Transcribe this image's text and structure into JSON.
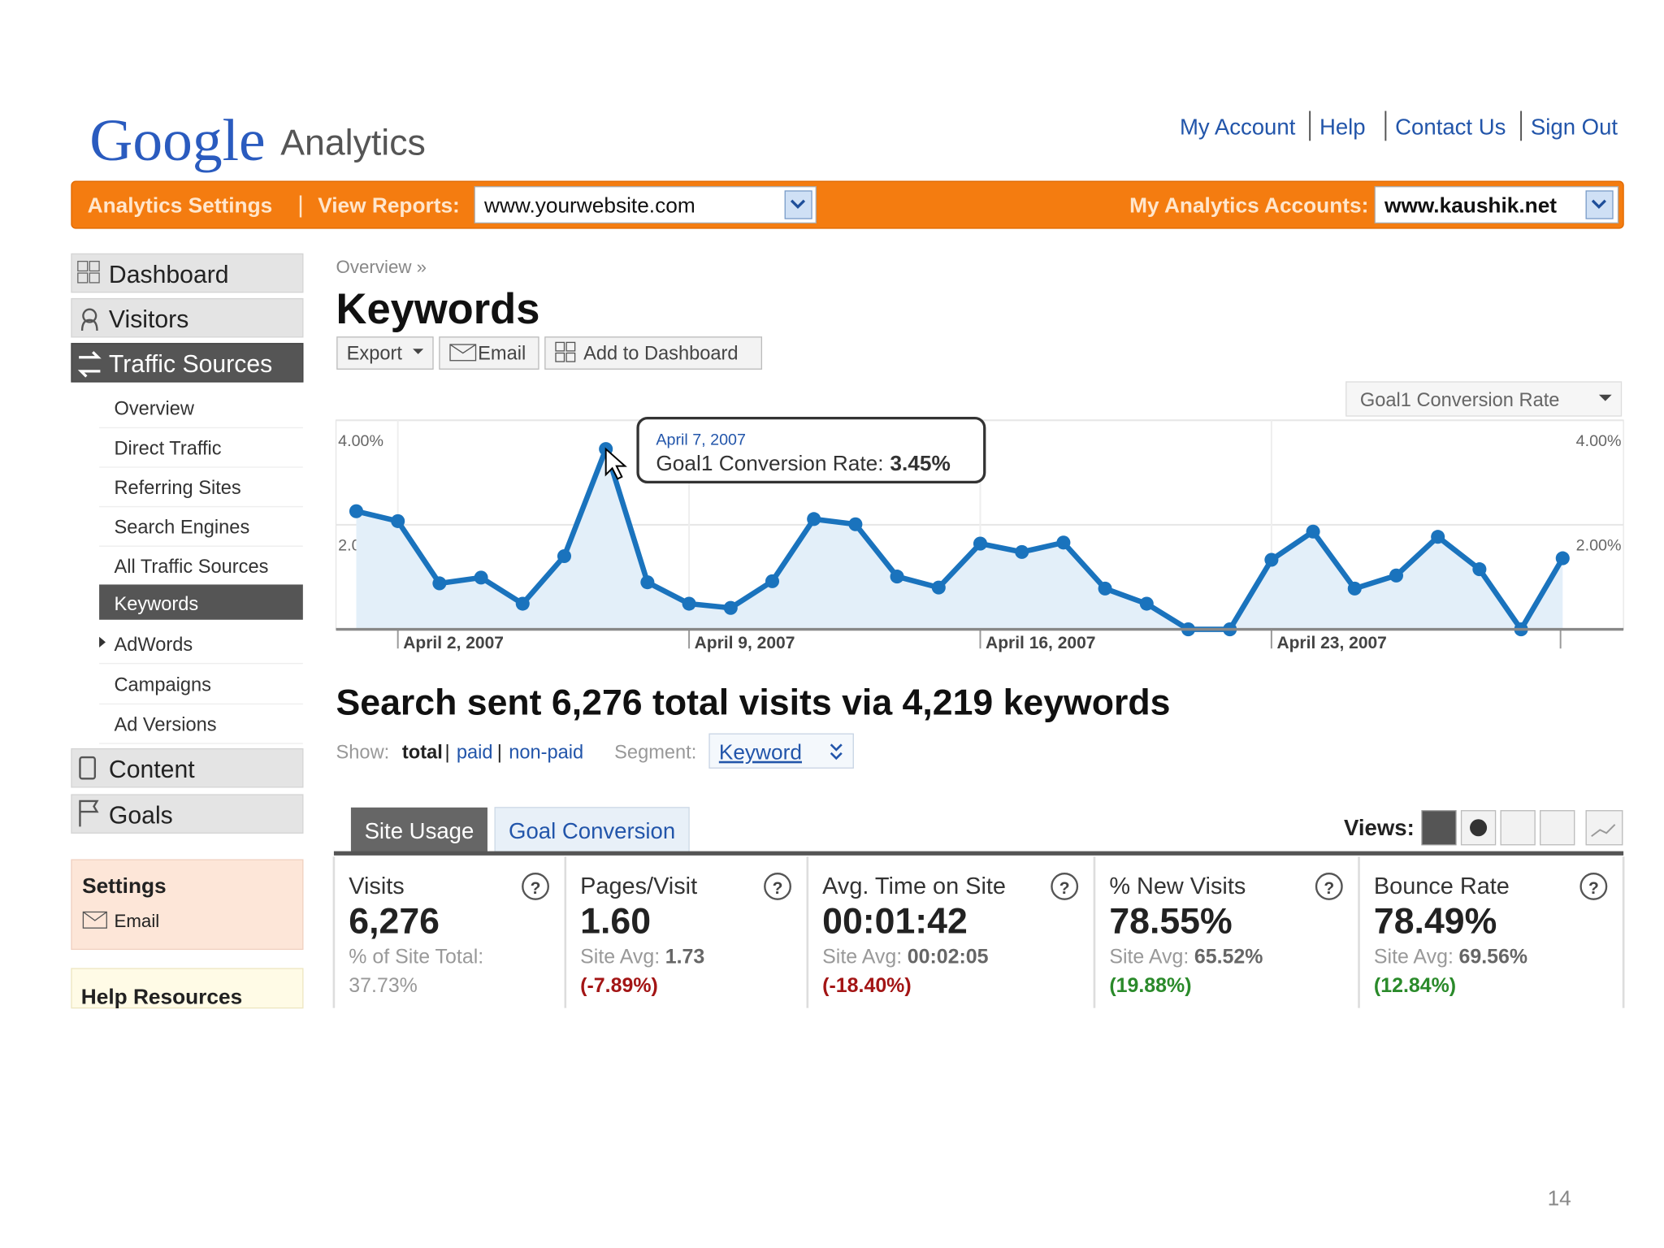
{
  "header": {
    "logo": "Google",
    "product": "Analytics",
    "links": [
      "My Account",
      "Help",
      "Contact Us",
      "Sign Out"
    ]
  },
  "toolbar": {
    "settings": "Analytics Settings",
    "view_reports": "View Reports:",
    "site": "www.yourwebsite.com",
    "accounts_label": "My Analytics Accounts:",
    "account": "www.kaushik.net"
  },
  "sidebar": {
    "top": [
      "Dashboard",
      "Visitors",
      "Traffic Sources"
    ],
    "sub": [
      "Overview",
      "Direct Traffic",
      "Referring Sites",
      "Search Engines",
      "All Traffic Sources",
      "Keywords",
      "AdWords",
      "Campaigns",
      "Ad Versions"
    ],
    "bottom": [
      "Content",
      "Goals"
    ],
    "settings": "Settings",
    "email": "Email",
    "help": "Help Resources"
  },
  "page": {
    "breadcrumb": "Overview »",
    "title": "Keywords",
    "buttons": [
      "Export",
      "Email",
      "Add to Dashboard"
    ],
    "metric_selector": "Goal1 Conversion Rate"
  },
  "chart": {
    "type": "line",
    "color": "#1a73bd",
    "categories": [
      null,
      "April 2, 2007",
      null,
      null,
      null,
      null,
      null,
      null,
      "April 9, 2007",
      null,
      null,
      null,
      null,
      null,
      null,
      "April 16, 2007",
      null,
      null,
      null,
      null,
      null,
      null,
      "April 23, 2007",
      null,
      null,
      null,
      null,
      null,
      null,
      null
    ],
    "values": [
      2.26,
      2.07,
      0.88,
      0.99,
      0.49,
      1.4,
      3.45,
      0.9,
      0.49,
      0.41,
      0.92,
      2.11,
      2.01,
      1.01,
      0.8,
      1.64,
      1.48,
      1.66,
      0.78,
      0.49,
      0,
      0,
      1.33,
      1.87,
      0.78,
      1.03,
      1.77,
      1.15,
      0,
      1.36
    ],
    "ylim": [
      0,
      4
    ],
    "yticks": [
      {
        "value": 2,
        "label": "2.00%"
      },
      {
        "value": 4,
        "label": "4.00%"
      }
    ],
    "grid": true,
    "tooltip": {
      "date": "April 7, 2007",
      "label": "Goal1 Conversion Rate:",
      "value": "3.45%"
    }
  },
  "summary": "Search sent 6,276 total visits via 4,219 keywords",
  "filters": {
    "show": "Show:",
    "options": [
      "total",
      "paid",
      "non-paid"
    ],
    "segment": "Segment:",
    "segment_value": "Keyword"
  },
  "tabs": [
    "Site Usage",
    "Goal Conversion"
  ],
  "views": "Views:",
  "metrics": [
    {
      "name": "Visits",
      "value": "6,276",
      "note": "% of Site Total:",
      "note_value": "37.73%"
    },
    {
      "name": "Pages/Visit",
      "value": "1.60",
      "note": "Site Avg:",
      "note_value": "1.73",
      "change": "(-7.89%)",
      "color": "#a31515"
    },
    {
      "name": "Avg. Time on Site",
      "value": "00:01:42",
      "note": "Site Avg:",
      "note_value": "00:02:05",
      "change": "(-18.40%)",
      "color": "#a31515"
    },
    {
      "name": "% New Visits",
      "value": "78.55%",
      "note": "Site Avg:",
      "note_value": "65.52%",
      "change": "(19.88%)",
      "color": "#2a8a2a"
    },
    {
      "name": "Bounce Rate",
      "value": "78.49%",
      "note": "Site Avg:",
      "note_value": "69.56%",
      "change": "(12.84%)",
      "color": "#2a8a2a"
    }
  ],
  "slide_number": "14"
}
